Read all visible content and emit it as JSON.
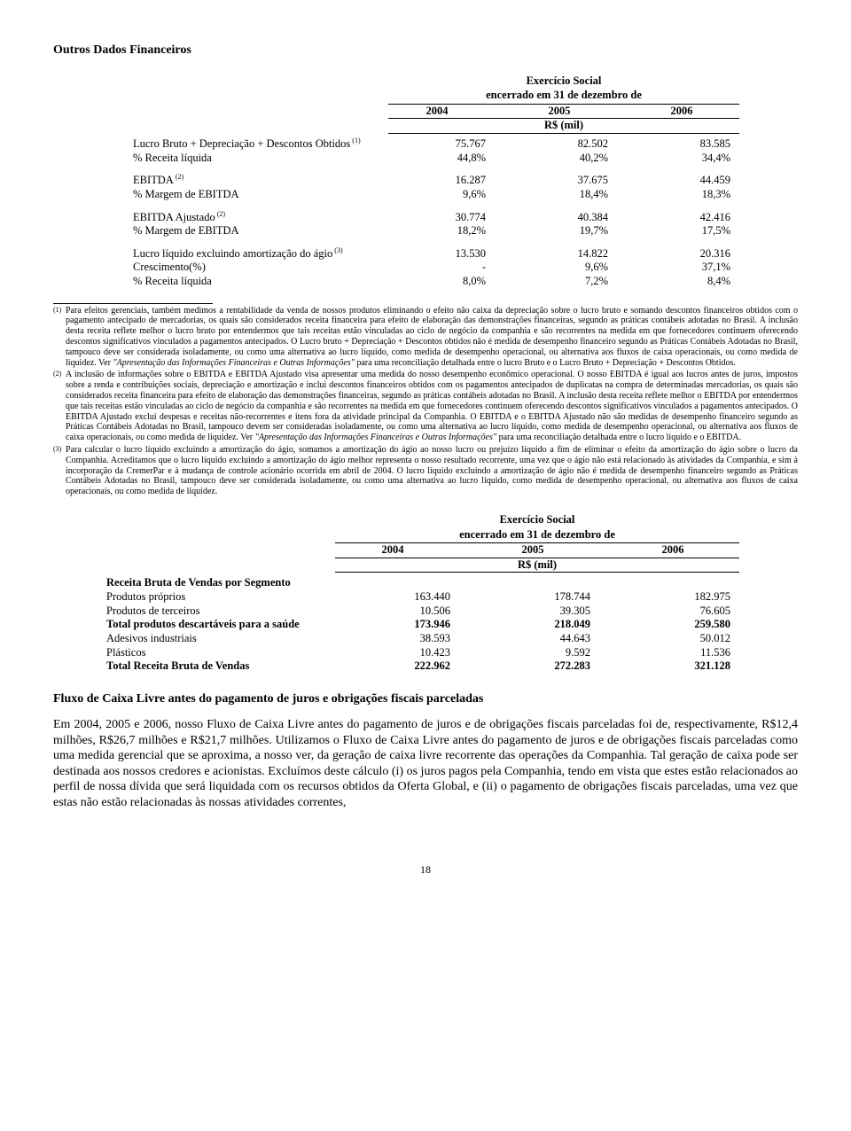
{
  "title": "Outros Dados Financeiros",
  "table1": {
    "hdr1": "Exercício Social",
    "hdr2": "encerrado em 31 de dezembro de",
    "years": [
      "2004",
      "2005",
      "2006"
    ],
    "unit": "R$ (mil)",
    "rows": [
      {
        "label": "Lucro Bruto + Depreciação + Descontos Obtidos",
        "sup": "(1)",
        "v": [
          "75.767",
          "82.502",
          "83.585"
        ]
      },
      {
        "label": "% Receita líquida",
        "v": [
          "44,8%",
          "40,2%",
          "34,4%"
        ]
      },
      {
        "gap": true
      },
      {
        "label": "EBITDA",
        "sup": "(2)",
        "v": [
          "16.287",
          "37.675",
          "44.459"
        ]
      },
      {
        "label": "% Margem de EBITDA",
        "v": [
          "9,6%",
          "18,4%",
          "18,3%"
        ]
      },
      {
        "gap": true
      },
      {
        "label": "EBITDA Ajustado",
        "sup": "(2)",
        "v": [
          "30.774",
          "40.384",
          "42.416"
        ]
      },
      {
        "label": "% Margem de EBITDA",
        "v": [
          "18,2%",
          "19,7%",
          "17,5%"
        ]
      },
      {
        "gap": true
      },
      {
        "label": "Lucro líquido excluindo amortização do ágio",
        "sup": "(3)",
        "v": [
          "13.530",
          "14.822",
          "20.316"
        ]
      },
      {
        "label": "Crescimento(%)",
        "v": [
          "-",
          "9,6%",
          "37,1%"
        ]
      },
      {
        "label": "% Receita líquida",
        "v": [
          "8,0%",
          "7,2%",
          "8,4%"
        ]
      }
    ]
  },
  "footnotes": [
    {
      "n": "(1)",
      "text": "Para efeitos gerenciais, também medimos a rentabilidade da venda de nossos produtos eliminando o efeito não caixa da depreciação sobre o lucro bruto e somando descontos financeiros obtidos com o pagamento antecipado de mercadorias, os quais são considerados receita financeira para efeito de elaboração das demonstrações financeiras, segundo as práticas contábeis adotadas no Brasil. A inclusão desta receita reflete melhor o lucro bruto por entendermos que tais receitas estão vinculadas ao ciclo de negócio da companhia e são recorrentes na medida em que fornecedores continuem oferecendo descontos significativos vinculados a pagamentos antecipados. O Lucro bruto + Depreciação + Descontos obtidos não é medida de desempenho financeiro segundo as Práticas Contábeis Adotadas no Brasil, tampouco deve ser considerada isoladamente, ou como uma alternativa ao lucro líquido, como medida de desempenho operacional, ou alternativa aos fluxos de caixa operacionais, ou como medida de liquidez. Ver \"Apresentação das Informações Financeiras e Outras Informações\" para uma reconciliação detalhada entre o lucro Bruto e o Lucro Bruto + Depreciação + Descontos Obtidos.",
      "italic": "\"Apresentação das Informações Financeiras e Outras Informações\""
    },
    {
      "n": "(2)",
      "text": "A inclusão de informações sobre o EBITDA e EBITDA Ajustado visa apresentar uma medida do nosso desempenho econômico operacional. O nosso EBITDA é igual aos lucros antes de juros, impostos sobre a renda e contribuições sociais, depreciação e amortização e inclui descontos financeiros obtidos com os pagamentos antecipados de duplicatas na compra de determinadas mercadorias, os quais são considerados receita financeira para efeito de elaboração das demonstrações financeiras, segundo as práticas contábeis adotadas no Brasil. A inclusão desta receita reflete melhor o EBITDA por entendermos que tais receitas estão vinculadas ao ciclo de negócio da companhia e são recorrentes na medida em que fornecedores continuem oferecendo descontos significativos vinculados a pagamentos antecipados. O EBITDA Ajustado exclui despesas e receitas não-recorrentes e itens fora da atividade principal da Companhia. O EBITDA e o EBITDA Ajustado não são medidas de desempenho financeiro segundo as Práticas Contábeis Adotadas no Brasil, tampouco devem ser consideradas isoladamente, ou como uma alternativa ao lucro líquido, como medida de desempenho operacional, ou alternativa aos fluxos de caixa operacionais, ou como medida de liquidez. Ver \"Apresentação das Informações Financeiras e Outras Informações\" para uma reconciliação detalhada entre o lucro líquido e o EBITDA.",
      "italic": "\"Apresentação das Informações Financeiras e Outras Informações\""
    },
    {
      "n": "(3)",
      "text": "Para calcular o lucro líquido excluindo a amortização do ágio, somamos a amortização do ágio ao nosso lucro ou prejuízo líquido a fim de eliminar o efeito da amortização do ágio sobre o lucro da Companhia. Acreditamos que o lucro líquido excluindo a amortização do ágio melhor representa o nosso resultado recorrente, uma vez que o ágio não está relacionado às atividades da Companhia, e sim à incorporação da CremerPar e à mudança de controle acionário ocorrida em abril de 2004. O lucro líquido excluindo a amortização de ágio não é medida de desempenho financeiro segundo as Práticas Contábeis Adotadas no Brasil, tampouco deve ser considerada isoladamente, ou como uma alternativa ao lucro líquido, como medida de desempenho operacional, ou alternativa aos fluxos de caixa operacionais, ou como medida de liquidez."
    }
  ],
  "table2": {
    "hdr1": "Exercício Social",
    "hdr2": "encerrado em 31 de dezembro de",
    "years": [
      "2004",
      "2005",
      "2006"
    ],
    "unit": "R$ (mil)",
    "heading": "Receita Bruta de Vendas por Segmento",
    "rows": [
      {
        "label": "Produtos próprios",
        "v": [
          "163.440",
          "178.744",
          "182.975"
        ]
      },
      {
        "label": "Produtos de terceiros",
        "v": [
          "10.506",
          "39.305",
          "76.605"
        ]
      },
      {
        "label": "Total produtos descartáveis para a saúde",
        "v": [
          "173.946",
          "218.049",
          "259.580"
        ],
        "bold": true
      },
      {
        "label": "Adesivos industriais",
        "v": [
          "38.593",
          "44.643",
          "50.012"
        ]
      },
      {
        "label": "Plásticos",
        "v": [
          "10.423",
          "9.592",
          "11.536"
        ]
      },
      {
        "label": "Total Receita Bruta de Vendas",
        "v": [
          "222.962",
          "272.283",
          "321.128"
        ],
        "bold": true
      }
    ]
  },
  "section2_title": "Fluxo de Caixa Livre antes do pagamento de juros e obrigações fiscais parceladas",
  "para": "Em 2004, 2005 e 2006, nosso Fluxo de Caixa Livre antes do pagamento de juros e de obrigações fiscais parceladas foi de, respectivamente, R$12,4 milhões, R$26,7 milhões e R$21,7 milhões. Utilizamos o Fluxo de Caixa Livre antes do pagamento de juros e de obrigações fiscais parceladas como uma medida gerencial que se aproxima, a nosso ver, da geração de caixa livre recorrente das operações da Companhia. Tal geração de caixa pode ser destinada aos nossos credores e acionistas. Excluímos deste cálculo (i) os juros pagos pela Companhia, tendo em vista que estes estão relacionados ao perfil de nossa dívida que será liquidada com os recursos obtidos da Oferta Global, e (ii) o pagamento de obrigações fiscais parceladas, uma vez que estas não estão relacionadas às nossas atividades correntes,",
  "pageno": "18",
  "colors": {
    "text": "#000000",
    "bg": "#ffffff",
    "rule": "#000000"
  }
}
